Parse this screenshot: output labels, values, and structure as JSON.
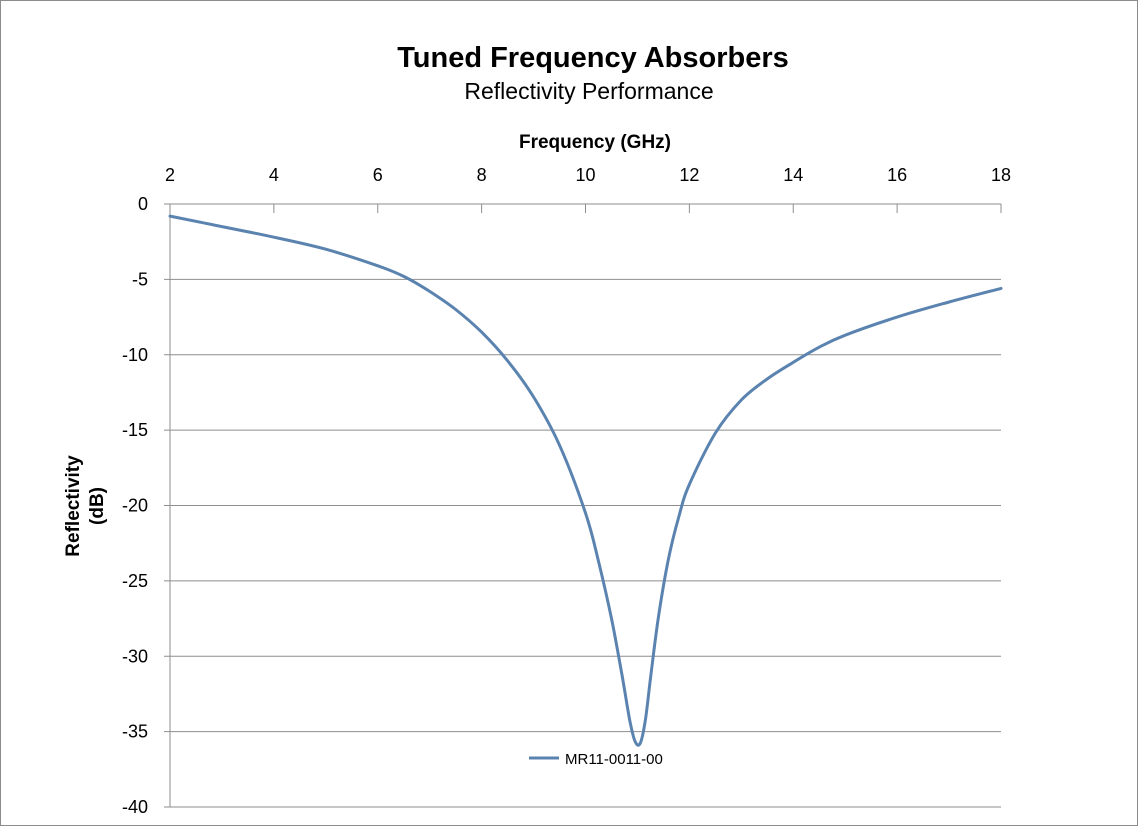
{
  "colors": {
    "series": "#5b83b0",
    "grid": "#8e8e8e",
    "axis": "#8e8e8e"
  },
  "chart_data": {
    "type": "line",
    "title": "Tuned Frequency Absorbers",
    "subtitle": "Reflectivity Performance",
    "xlabel": "Frequency (GHz)",
    "ylabel_lines": [
      "Reflectivity",
      "(dB)"
    ],
    "xlim": [
      2,
      18
    ],
    "ylim": [
      -40,
      0
    ],
    "x_ticks": [
      2,
      4,
      6,
      8,
      10,
      12,
      14,
      16,
      18
    ],
    "y_ticks": [
      0,
      -5,
      -10,
      -15,
      -20,
      -25,
      -30,
      -35,
      -40
    ],
    "x_axis_position": "top",
    "grid": "horizontal",
    "legend_position": "bottom-center",
    "series": [
      {
        "name": "MR11-0011-00",
        "color": "#5b83b0",
        "x": [
          2,
          3,
          4,
          5,
          6,
          6.5,
          7,
          7.5,
          8,
          8.5,
          9,
          9.5,
          10,
          10.25,
          10.5,
          10.7,
          10.85,
          10.95,
          11.05,
          11.15,
          11.25,
          11.4,
          11.6,
          11.8,
          12,
          12.5,
          13,
          13.5,
          14,
          14.5,
          15,
          16,
          17,
          18
        ],
        "values": [
          -0.8,
          -1.5,
          -2.2,
          -3.0,
          -4.1,
          -4.8,
          -5.8,
          -7.0,
          -8.5,
          -10.4,
          -12.8,
          -16.0,
          -20.5,
          -23.7,
          -27.5,
          -31.2,
          -34.2,
          -35.6,
          -35.8,
          -34.3,
          -31.5,
          -27.5,
          -23.5,
          -20.7,
          -18.6,
          -15.2,
          -13.0,
          -11.6,
          -10.5,
          -9.5,
          -8.7,
          -7.5,
          -6.5,
          -5.6
        ]
      }
    ]
  }
}
